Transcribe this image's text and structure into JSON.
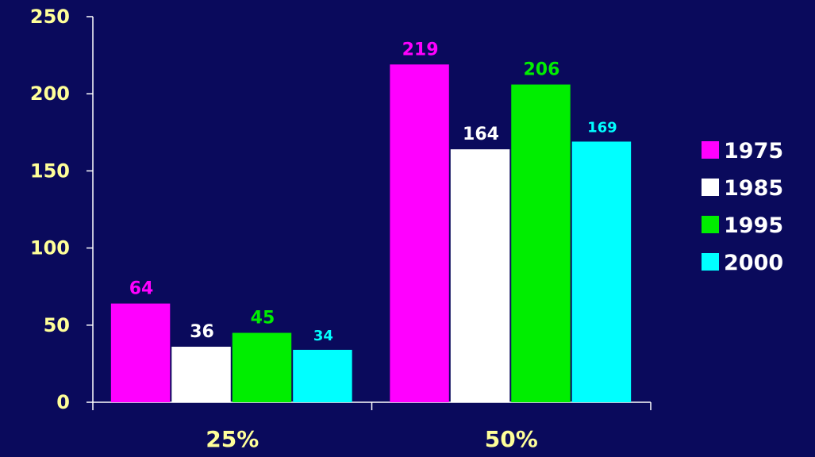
{
  "page": {
    "background": "#0a0a5c"
  },
  "chart_data": {
    "type": "bar",
    "title": "",
    "xlabel": "",
    "ylabel": "",
    "categories": [
      "25%",
      "50%"
    ],
    "ylim": [
      0,
      250
    ],
    "yticks": [
      0,
      50,
      100,
      150,
      200,
      250
    ],
    "ytick_labels": [
      "0",
      "50",
      "100",
      "150",
      "200",
      "250"
    ],
    "grid": false,
    "legend_position": "right",
    "series": [
      {
        "name": "1975",
        "values": [
          64,
          219
        ],
        "color": "#ff00ff",
        "labels": [
          "64",
          "219"
        ]
      },
      {
        "name": "1985",
        "values": [
          36,
          164
        ],
        "color": "#ffffff",
        "labels": [
          "36",
          "164"
        ]
      },
      {
        "name": "1995",
        "values": [
          45,
          206
        ],
        "color": "#00ee00",
        "labels": [
          "45",
          "206"
        ]
      },
      {
        "name": "2000",
        "values": [
          34,
          169
        ],
        "color": "#00ffff",
        "labels": [
          "34",
          "169"
        ]
      }
    ],
    "axis_color": "#ffffff",
    "tick_label_color": "#ffff99",
    "category_label_color": "#ffff99",
    "legend_text_color": "#ffffff"
  }
}
